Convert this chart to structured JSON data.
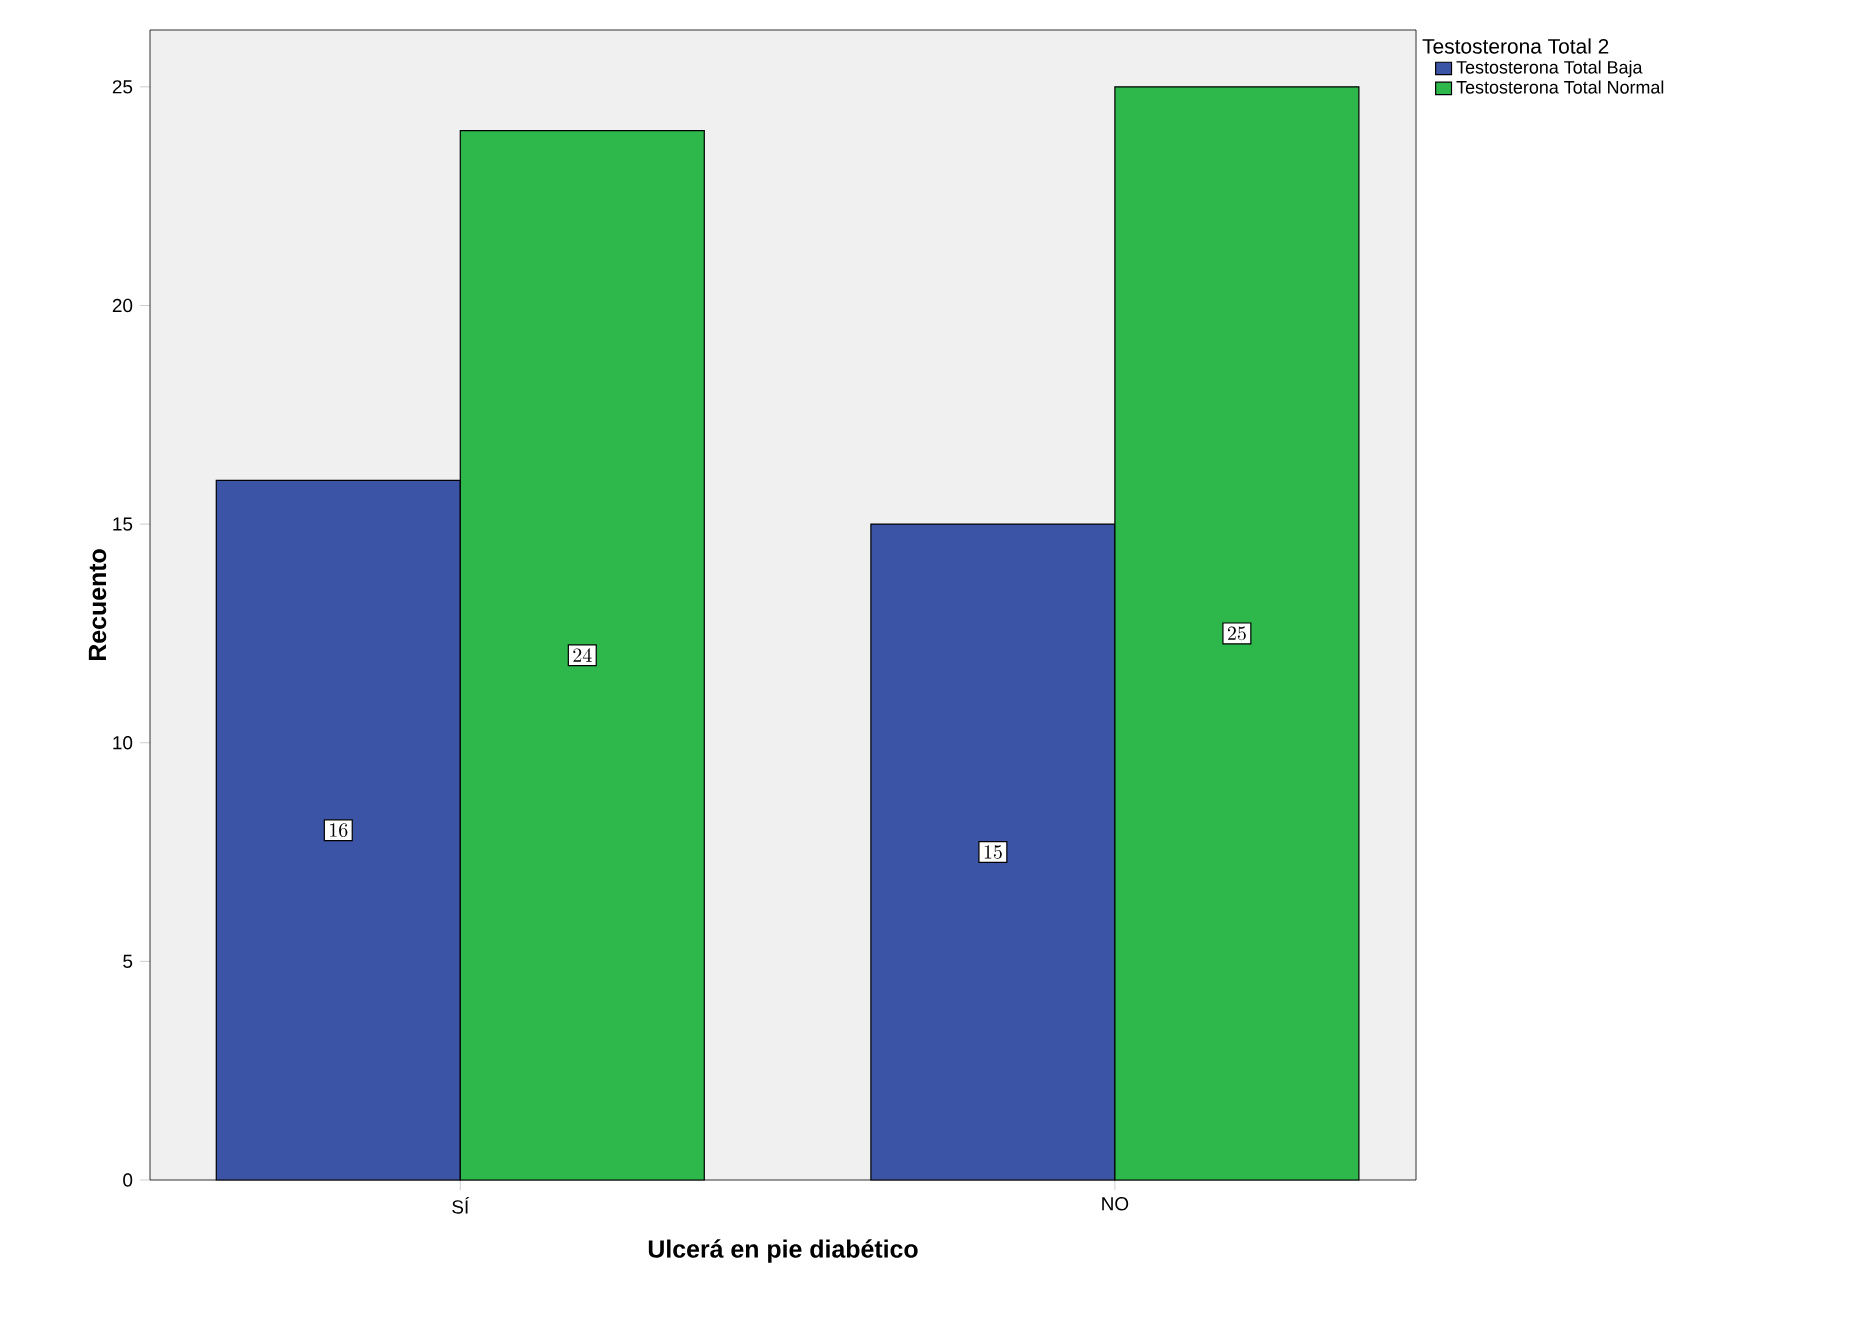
{
  "chart_data": {
    "type": "bar",
    "xlabel": "Ulcerá en pie diabético",
    "ylabel": "Recuento",
    "legend_title": "Testosterona Total 2",
    "categories": [
      "SÍ",
      "NO"
    ],
    "series": [
      {
        "name": "Testosterona Total Baja",
        "color": "#3c54a5",
        "values": [
          16,
          15
        ]
      },
      {
        "name": "Testosterona Total Normal",
        "color": "#2eb84b",
        "values": [
          24,
          25
        ]
      }
    ],
    "ylim": [
      0,
      26.3
    ],
    "yticks": [
      0,
      5,
      10,
      15,
      20,
      25
    ],
    "grid": false,
    "legend": "right",
    "data_labels": true
  }
}
